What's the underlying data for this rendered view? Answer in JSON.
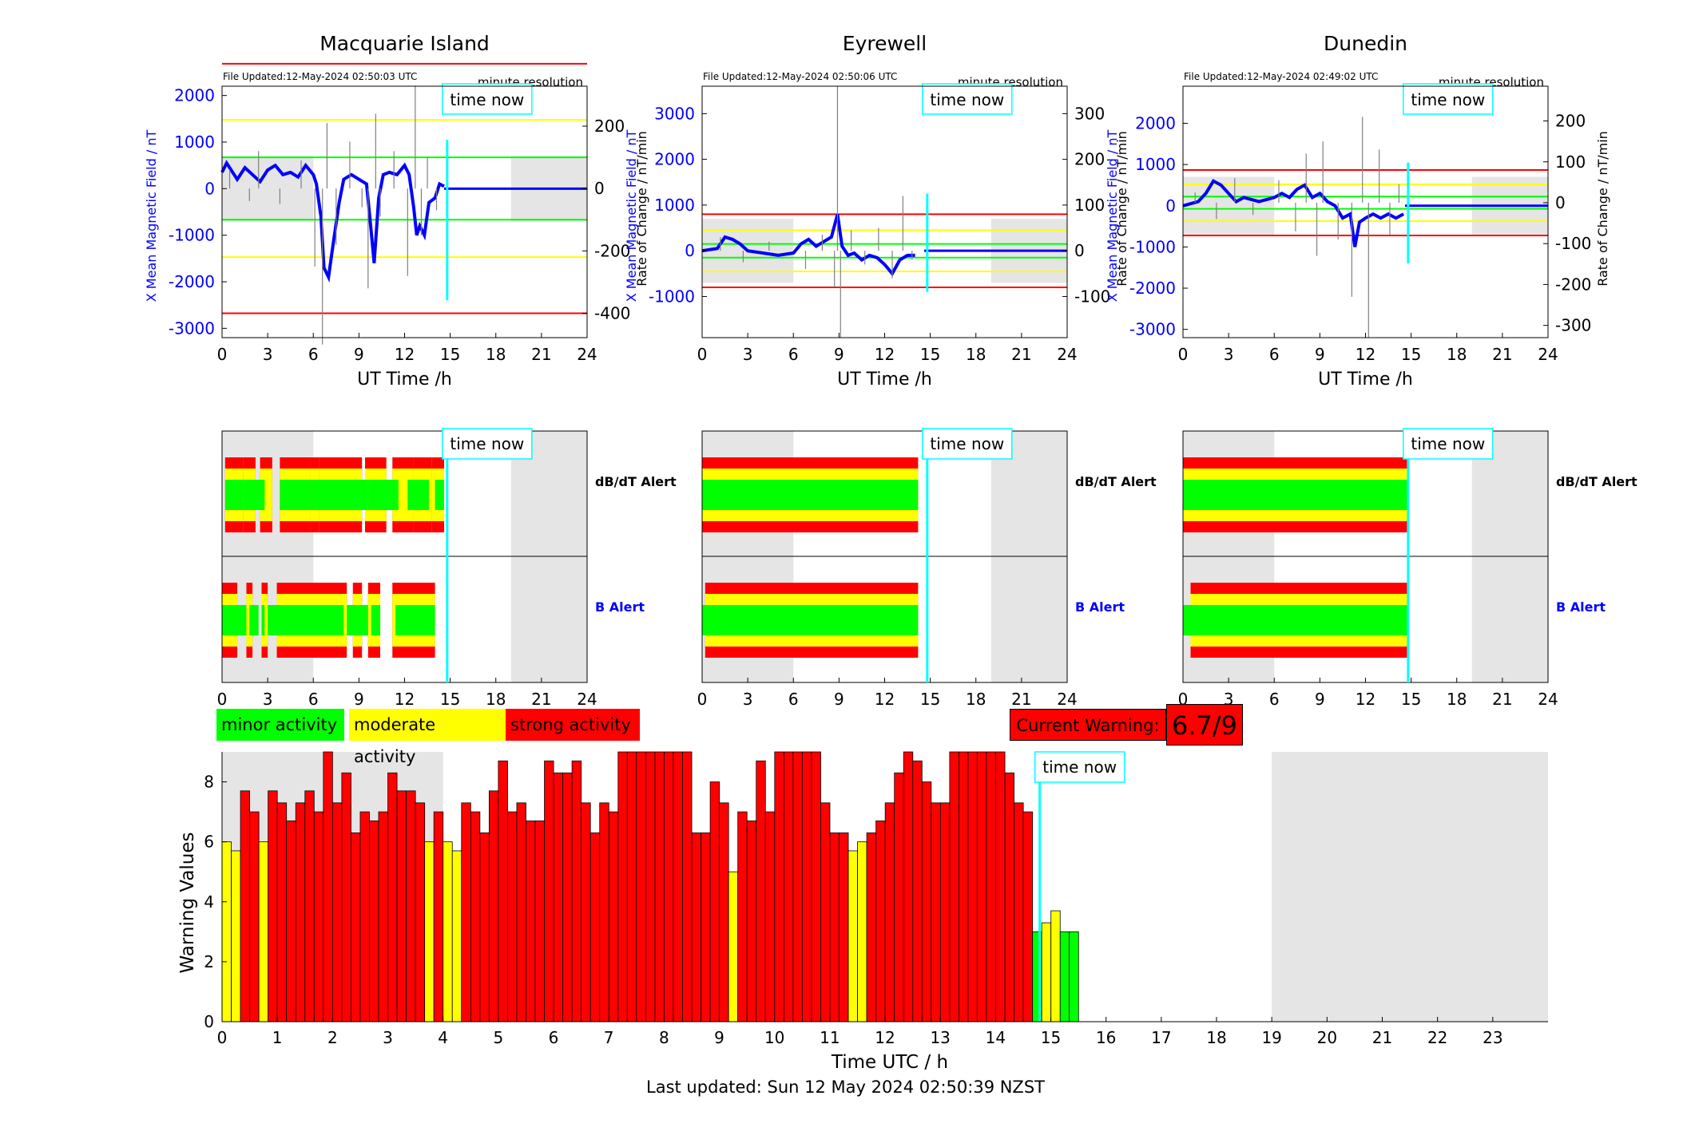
{
  "chart_data": [
    {
      "type": "line",
      "title": "Macquarie Island",
      "file_updated": "File Updated:12-May-2024 02:50:03 UTC",
      "resolution": "minute resolution",
      "time_now_label": "time now",
      "xlabel": "UT Time /h",
      "ylabel_left": "X Mean Magnetic Field / nT",
      "ylabel_right": "Rate of Change / nT/min",
      "xlim": [
        0,
        24
      ],
      "ylim_left": [
        -3200,
        2200
      ],
      "ylim_right": [
        -478,
        328
      ],
      "x_ticks": [
        0,
        3,
        6,
        9,
        12,
        15,
        18,
        21,
        24
      ],
      "y_ticks_left": [
        -3000,
        -2000,
        -1000,
        0,
        1000,
        2000
      ],
      "y_ticks_right": [
        -400,
        -200,
        0,
        200
      ],
      "night_bands": [
        [
          0,
          6
        ],
        [
          19,
          24
        ]
      ],
      "night_band_y": [
        -700,
        700
      ],
      "time_now": 14.8,
      "time_now_line_y": [
        -2400,
        1050
      ],
      "thresholds": [
        {
          "value": 400,
          "color": "#ff0000"
        },
        {
          "value": -400,
          "color": "#ff0000"
        },
        {
          "value": 220,
          "color": "#ffff00"
        },
        {
          "value": -220,
          "color": "#ffff00"
        },
        {
          "value": 100,
          "color": "#00ff00"
        },
        {
          "value": -100,
          "color": "#00ff00"
        }
      ],
      "series": [
        {
          "axis": "left",
          "color": "#0000ff",
          "x": [
            0,
            0.3,
            0.6,
            1,
            1.5,
            2,
            2.5,
            3,
            3.5,
            4,
            4.5,
            5,
            5.5,
            6,
            6.2,
            6.5,
            6.7,
            7,
            7.3,
            7.7,
            8,
            8.5,
            9,
            9.5,
            9.8,
            10,
            10.3,
            10.6,
            11,
            11.5,
            12,
            12.3,
            12.6,
            12.8,
            13,
            13.3,
            13.6,
            14,
            14.3,
            14.6
          ],
          "y": [
            350,
            550,
            400,
            200,
            450,
            300,
            150,
            400,
            500,
            300,
            350,
            250,
            500,
            300,
            100,
            -600,
            -1700,
            -1900,
            -1200,
            -300,
            200,
            300,
            200,
            100,
            -900,
            -1600,
            -200,
            300,
            350,
            300,
            500,
            300,
            -400,
            -1000,
            -800,
            -1000,
            -300,
            -200,
            100,
            50
          ]
        },
        {
          "axis": "right",
          "color": "#808080",
          "x": [
            0.5,
            1.8,
            2.4,
            3.8,
            5.2,
            6.1,
            6.6,
            6.9,
            7.5,
            8.4,
            9.2,
            9.6,
            10.1,
            10.4,
            11.3,
            12.2,
            12.7,
            13.1,
            13.5,
            14.1
          ],
          "y": [
            60,
            -40,
            120,
            -50,
            90,
            -250,
            -500,
            210,
            -180,
            150,
            -60,
            -320,
            240,
            -90,
            120,
            -280,
            330,
            -150,
            100,
            -70
          ]
        }
      ]
    },
    {
      "type": "line",
      "title": "Eyrewell",
      "file_updated": "File Updated:12-May-2024 02:50:06 UTC",
      "resolution": "minute resolution",
      "time_now_label": "time now",
      "xlabel": "UT Time /h",
      "ylabel_left": "X Mean Magnetic Field / nT",
      "ylabel_right": "Rate of Change / nT/min",
      "xlim": [
        0,
        24
      ],
      "ylim_left": [
        -1900,
        3600
      ],
      "ylim_right": [
        -190,
        360
      ],
      "x_ticks": [
        0,
        3,
        6,
        9,
        12,
        15,
        18,
        21,
        24
      ],
      "y_ticks_left": [
        -1000,
        0,
        1000,
        2000,
        3000
      ],
      "y_ticks_right": [
        -100,
        0,
        100,
        200,
        300
      ],
      "night_bands": [
        [
          0,
          6
        ],
        [
          19,
          24
        ]
      ],
      "night_band_y": [
        -700,
        700
      ],
      "time_now": 14.8,
      "time_now_line_y": [
        -900,
        1250
      ],
      "thresholds": [
        {
          "value": 80,
          "color": "#ff0000"
        },
        {
          "value": -80,
          "color": "#ff0000"
        },
        {
          "value": 45,
          "color": "#ffff00"
        },
        {
          "value": -45,
          "color": "#ffff00"
        },
        {
          "value": 15,
          "color": "#00ff00"
        },
        {
          "value": -15,
          "color": "#00ff00"
        }
      ],
      "series": [
        {
          "axis": "left",
          "color": "#0000ff",
          "x": [
            0,
            1,
            1.5,
            2,
            2.5,
            3,
            4,
            5,
            6,
            6.5,
            7,
            7.5,
            8,
            8.5,
            8.9,
            9.2,
            9.6,
            10,
            10.5,
            11,
            11.5,
            12,
            12.5,
            13,
            13.5,
            14
          ],
          "y": [
            0,
            50,
            300,
            250,
            150,
            0,
            -50,
            -100,
            -50,
            150,
            250,
            100,
            200,
            300,
            800,
            100,
            -100,
            -50,
            -200,
            -100,
            -150,
            -300,
            -500,
            -200,
            -100,
            -100
          ]
        },
        {
          "axis": "right",
          "color": "#808080",
          "x": [
            1.2,
            2.7,
            4.4,
            6.8,
            7.9,
            8.7,
            8.9,
            9.1,
            9.8,
            10.7,
            11.6,
            12.5,
            13.2,
            13.8
          ],
          "y": [
            30,
            -25,
            20,
            -40,
            35,
            -80,
            360,
            -190,
            45,
            -30,
            50,
            -60,
            120,
            -20
          ]
        }
      ]
    },
    {
      "type": "line",
      "title": "Dunedin",
      "file_updated": "File Updated:12-May-2024 02:49:02 UTC",
      "resolution": "minute resolution",
      "time_now_label": "time now",
      "xlabel": "UT Time /h",
      "ylabel_left": "X Mean Magnetic Field / nT",
      "ylabel_right": "Rate of Change / nT/min",
      "xlim": [
        0,
        24
      ],
      "ylim_left": [
        -3200,
        2900
      ],
      "ylim_right": [
        -330,
        285
      ],
      "x_ticks": [
        0,
        3,
        6,
        9,
        12,
        15,
        18,
        21,
        24
      ],
      "y_ticks_left": [
        -3000,
        -2000,
        -1000,
        0,
        1000,
        2000
      ],
      "y_ticks_right": [
        -300,
        -200,
        -100,
        0,
        100,
        200
      ],
      "night_bands": [
        [
          0,
          6
        ],
        [
          19,
          24
        ]
      ],
      "night_band_y": [
        -700,
        700
      ],
      "time_now": 14.8,
      "time_now_line_y": [
        -1400,
        1050
      ],
      "thresholds": [
        {
          "value": 80,
          "color": "#ff0000"
        },
        {
          "value": -80,
          "color": "#ff0000"
        },
        {
          "value": 45,
          "color": "#ffff00"
        },
        {
          "value": -45,
          "color": "#ffff00"
        },
        {
          "value": 15,
          "color": "#00ff00"
        },
        {
          "value": -15,
          "color": "#00ff00"
        }
      ],
      "series": [
        {
          "axis": "left",
          "color": "#0000ff",
          "x": [
            0,
            1,
            1.5,
            2,
            2.5,
            3,
            3.5,
            4,
            5,
            6,
            6.5,
            7,
            7.5,
            8,
            8.5,
            9,
            9.5,
            10,
            10.5,
            11,
            11.3,
            11.6,
            12,
            12.5,
            13,
            13.5,
            14,
            14.5
          ],
          "y": [
            0,
            100,
            300,
            600,
            500,
            300,
            100,
            200,
            100,
            200,
            300,
            200,
            400,
            500,
            200,
            300,
            100,
            0,
            -300,
            -200,
            -1000,
            -400,
            -300,
            -200,
            -300,
            -200,
            -300,
            -200
          ]
        },
        {
          "axis": "right",
          "color": "#808080",
          "x": [
            0.8,
            2.2,
            3.4,
            4.6,
            6.3,
            7.4,
            8.1,
            8.8,
            9.2,
            10.2,
            11.1,
            11.8,
            12.2,
            12.9,
            13.6,
            14.2
          ],
          "y": [
            25,
            -40,
            60,
            -30,
            55,
            -70,
            120,
            -130,
            150,
            -90,
            -230,
            210,
            -330,
            130,
            -80,
            45
          ]
        }
      ]
    },
    {
      "type": "heatmap",
      "title": "Macquarie Island",
      "rows": [
        "dB/dT Alert",
        "B Alert"
      ],
      "row_colors": [
        "#000000",
        "#0000ff"
      ],
      "time_now_label": "time now",
      "x_ticks": [
        0,
        3,
        6,
        9,
        12,
        15,
        18,
        21,
        24
      ],
      "night_bands": [
        [
          0,
          6
        ],
        [
          19,
          24
        ]
      ],
      "time_now": 14.8,
      "dbdt_segments": [
        [
          0.2,
          1.4,
          "strong"
        ],
        [
          1.4,
          2.2,
          "moderate"
        ],
        [
          2.5,
          3.3,
          "strong"
        ],
        [
          3.8,
          5.8,
          "moderate"
        ],
        [
          5.8,
          6.4,
          "strong"
        ],
        [
          6.4,
          9.2,
          "strong"
        ],
        [
          9.4,
          10.8,
          "strong"
        ],
        [
          11.2,
          12.6,
          "strong"
        ],
        [
          12.6,
          13.8,
          "moderate"
        ],
        [
          13.8,
          14.6,
          "moderate"
        ]
      ],
      "dbdt_minor": [
        [
          0.2,
          1.4
        ],
        [
          1.4,
          2.8
        ],
        [
          3.8,
          5.8
        ],
        [
          5.8,
          9.6
        ],
        [
          9.6,
          11.6
        ],
        [
          12.2,
          13.6
        ],
        [
          14.0,
          14.6
        ]
      ],
      "b_segments": [
        [
          0,
          1,
          "strong"
        ],
        [
          1.6,
          2.0,
          "strong"
        ],
        [
          2.6,
          3.0,
          "strong"
        ],
        [
          3.6,
          8.2,
          "strong"
        ],
        [
          8.6,
          9.2,
          "strong"
        ],
        [
          9.6,
          10.4,
          "strong"
        ],
        [
          11.2,
          14.0,
          "strong"
        ]
      ],
      "b_minor": [
        [
          0,
          1.6
        ],
        [
          1.8,
          2.4
        ],
        [
          2.6,
          2.8
        ],
        [
          3.0,
          8.0
        ],
        [
          8.2,
          9.6
        ],
        [
          9.8,
          10.4
        ],
        [
          11.4,
          14.0
        ]
      ]
    },
    {
      "type": "heatmap",
      "title": "Eyrewell",
      "rows": [
        "dB/dT Alert",
        "B Alert"
      ],
      "row_colors": [
        "#000000",
        "#0000ff"
      ],
      "time_now_label": "time now",
      "x_ticks": [
        0,
        3,
        6,
        9,
        12,
        15,
        18,
        21,
        24
      ],
      "night_bands": [
        [
          0,
          6
        ],
        [
          19,
          24
        ]
      ],
      "time_now": 14.8,
      "dbdt_segments": [
        [
          0,
          14.2,
          "strong"
        ]
      ],
      "dbdt_minor": [
        [
          0,
          14.2
        ]
      ],
      "b_segments": [
        [
          0.2,
          14.2,
          "strong"
        ]
      ],
      "b_minor": [
        [
          0,
          14.2
        ]
      ]
    },
    {
      "type": "heatmap",
      "title": "Dunedin",
      "rows": [
        "dB/dT Alert",
        "B Alert"
      ],
      "row_colors": [
        "#000000",
        "#0000ff"
      ],
      "time_now_label": "time now",
      "x_ticks": [
        0,
        3,
        6,
        9,
        12,
        15,
        18,
        21,
        24
      ],
      "night_bands": [
        [
          0,
          6
        ],
        [
          19,
          24
        ]
      ],
      "time_now": 14.8,
      "dbdt_segments": [
        [
          0,
          14.8,
          "strong"
        ]
      ],
      "dbdt_minor": [
        [
          0,
          14.8
        ]
      ],
      "b_segments": [
        [
          0.5,
          14.8,
          "strong"
        ]
      ],
      "b_minor": [
        [
          0,
          14.8
        ]
      ]
    },
    {
      "type": "bar",
      "xlabel": "Time UTC / h",
      "ylabel": "Warning Values",
      "time_now_label": "time now",
      "xlim": [
        0,
        24
      ],
      "ylim": [
        0,
        9
      ],
      "x_ticks": [
        0,
        1,
        2,
        3,
        4,
        5,
        6,
        7,
        8,
        9,
        10,
        11,
        12,
        13,
        14,
        15,
        16,
        17,
        18,
        19,
        20,
        21,
        22,
        23
      ],
      "y_ticks": [
        0,
        2,
        4,
        6,
        8
      ],
      "night_bands": [
        [
          0,
          4
        ],
        [
          19,
          24
        ]
      ],
      "time_now": 14.8,
      "bar_width_h": 0.1667,
      "thresholds": {
        "minor_max": 3,
        "moderate_max": 6
      },
      "values": [
        6,
        5.7,
        7.7,
        7,
        6,
        7.7,
        7.3,
        6.7,
        7.3,
        7.7,
        7,
        9,
        7.3,
        8.3,
        6.3,
        7,
        6.7,
        7,
        8.3,
        7.7,
        7.7,
        7.3,
        6,
        7,
        6,
        5.7,
        7.3,
        7,
        6.3,
        7.7,
        8.7,
        7,
        7.3,
        6.7,
        6.7,
        8.7,
        8.3,
        8.3,
        8.7,
        7.3,
        6.3,
        7.3,
        7,
        9,
        9,
        9,
        9,
        9,
        9,
        9,
        9,
        6.3,
        6.3,
        8,
        7.3,
        5,
        7,
        6.7,
        8.7,
        7,
        9,
        9,
        9,
        9,
        9,
        7.3,
        6.3,
        6.3,
        5.7,
        6,
        6.3,
        6.7,
        7.3,
        8.3,
        9,
        8.7,
        8,
        7.3,
        7.3,
        9,
        9,
        9,
        9,
        9,
        9,
        8.3,
        7.3,
        7,
        3,
        3.3,
        3.7,
        3,
        3
      ]
    }
  ],
  "legend": {
    "minor": {
      "label": "minor activity",
      "color": "#00ff00"
    },
    "moderate": {
      "label": "moderate activity",
      "color": "#ffff00"
    },
    "strong": {
      "label": "strong activity",
      "color": "#ff0000"
    }
  },
  "current_warning": {
    "label": "Current Warning:",
    "value": "6.7/9"
  },
  "footer": {
    "last_updated": "Last updated: Sun 12 May 2024 02:50:39 NZST"
  },
  "colors": {
    "night": "#e5e5e5",
    "time_now": "#00ffff",
    "field_line": "#0000ff",
    "rate_line": "#808080"
  }
}
